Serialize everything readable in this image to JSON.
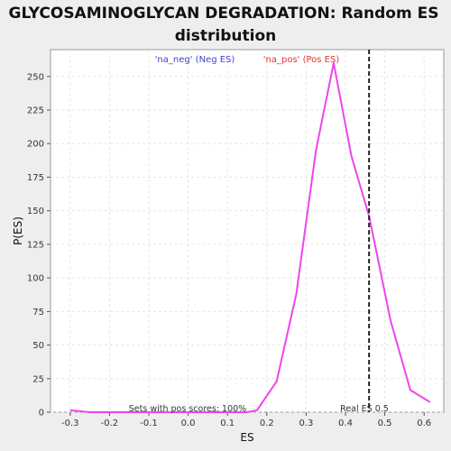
{
  "chart_data": {
    "type": "line",
    "title_lines": [
      "GLYCOSAMINOGLYCAN DEGRADATION: Random ES",
      "distribution"
    ],
    "xlabel": "ES",
    "ylabel": "P(ES)",
    "xlim": [
      -0.35,
      0.65
    ],
    "ylim": [
      0,
      270
    ],
    "xticks": [
      -0.3,
      -0.2,
      -0.1,
      0.0,
      0.1,
      0.2,
      0.3,
      0.4,
      0.5,
      0.6
    ],
    "xtick_labels": [
      "-0.3",
      "-0.2",
      "-0.1",
      "0.0",
      "0.1",
      "0.2",
      "0.3",
      "0.4",
      "0.5",
      "0.6"
    ],
    "yticks": [
      0,
      25,
      50,
      75,
      100,
      125,
      150,
      175,
      200,
      225,
      250
    ],
    "ytick_labels": [
      "0",
      "25",
      "50",
      "75",
      "100",
      "125",
      "150",
      "175",
      "200",
      "225",
      "250"
    ],
    "grid": true,
    "legend": [
      {
        "label": "'na_neg' (Neg ES)",
        "color": "#4444cc"
      },
      {
        "label": "'na_pos' (Pos ES)",
        "color": "#dd3333"
      }
    ],
    "series": [
      {
        "color": "#ee44ee",
        "x": [
          -0.3,
          -0.25,
          -0.2,
          -0.15,
          -0.1,
          -0.05,
          0.0,
          0.05,
          0.1,
          0.15,
          0.175,
          0.225,
          0.275,
          0.325,
          0.37,
          0.415,
          0.46,
          0.515,
          0.565,
          0.615
        ],
        "y": [
          1.5,
          0,
          0,
          0,
          0,
          0,
          0,
          0,
          0,
          0,
          1.5,
          23,
          88,
          195,
          260,
          191,
          146,
          68,
          16.5,
          7.5
        ]
      }
    ],
    "real_es": 0.46,
    "real_es_label": "Real ES 0.5",
    "bottom_note": "Sets with pos scores: 100%"
  }
}
